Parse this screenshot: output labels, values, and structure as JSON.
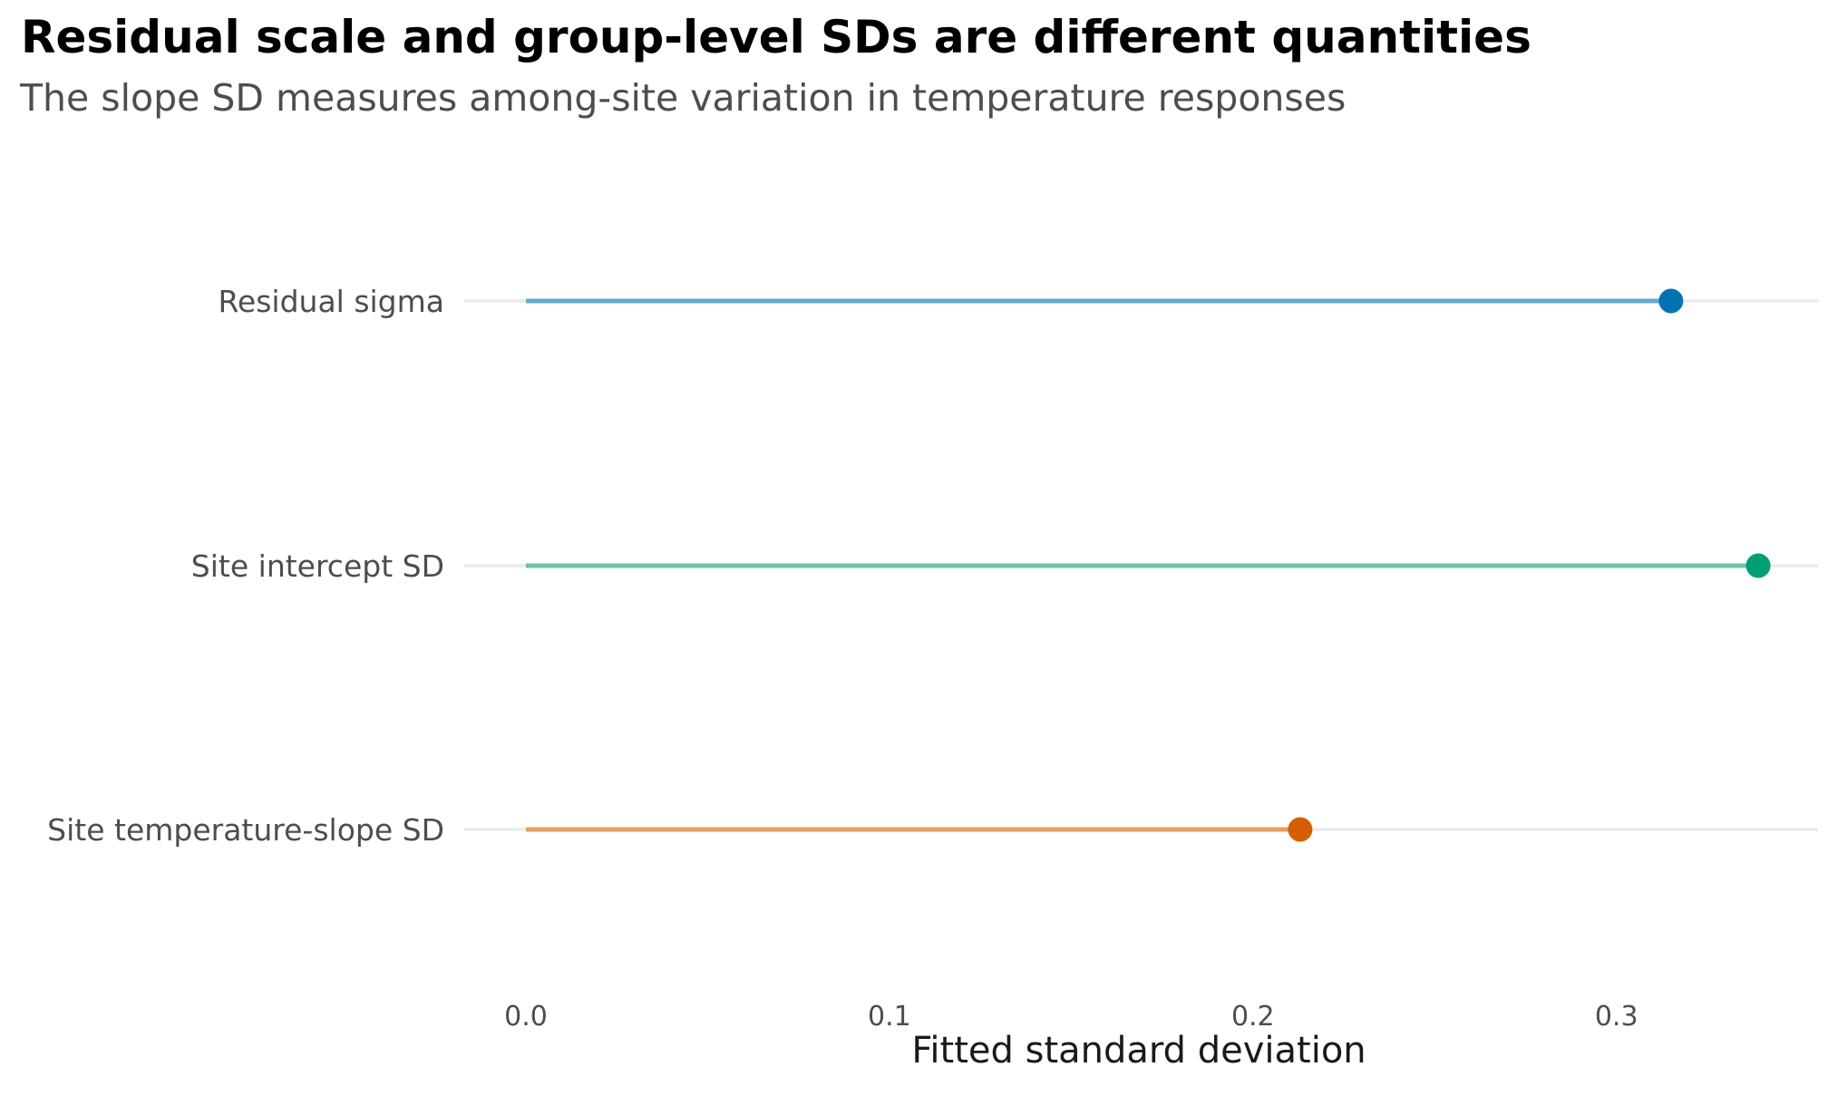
{
  "title": "Residual scale and group-level SDs are different quantities",
  "subtitle": "The slope SD measures among-site variation in temperature responses",
  "chart_data": {
    "type": "lollipop",
    "title": "Residual scale and group-level SDs are different quantities",
    "subtitle": "The slope SD measures among-site variation in temperature responses",
    "xlabel": "Fitted standard deviation",
    "ylabel": "",
    "xlim": [
      0,
      0.34
    ],
    "xticks": [
      0.0,
      0.1,
      0.2,
      0.3
    ],
    "xtick_labels": [
      "0.0",
      "0.1",
      "0.2",
      "0.3"
    ],
    "grid": "horizontal only",
    "legend": "none",
    "categories": [
      "Residual sigma",
      "Site intercept SD",
      "Site temperature-slope SD"
    ],
    "values": [
      0.315,
      0.339,
      0.213
    ],
    "colors": {
      "points": [
        "#0072b2",
        "#009e73",
        "#d55e00"
      ],
      "stems": [
        "#66abcc",
        "#66c4ab",
        "#e39e66"
      ]
    }
  }
}
